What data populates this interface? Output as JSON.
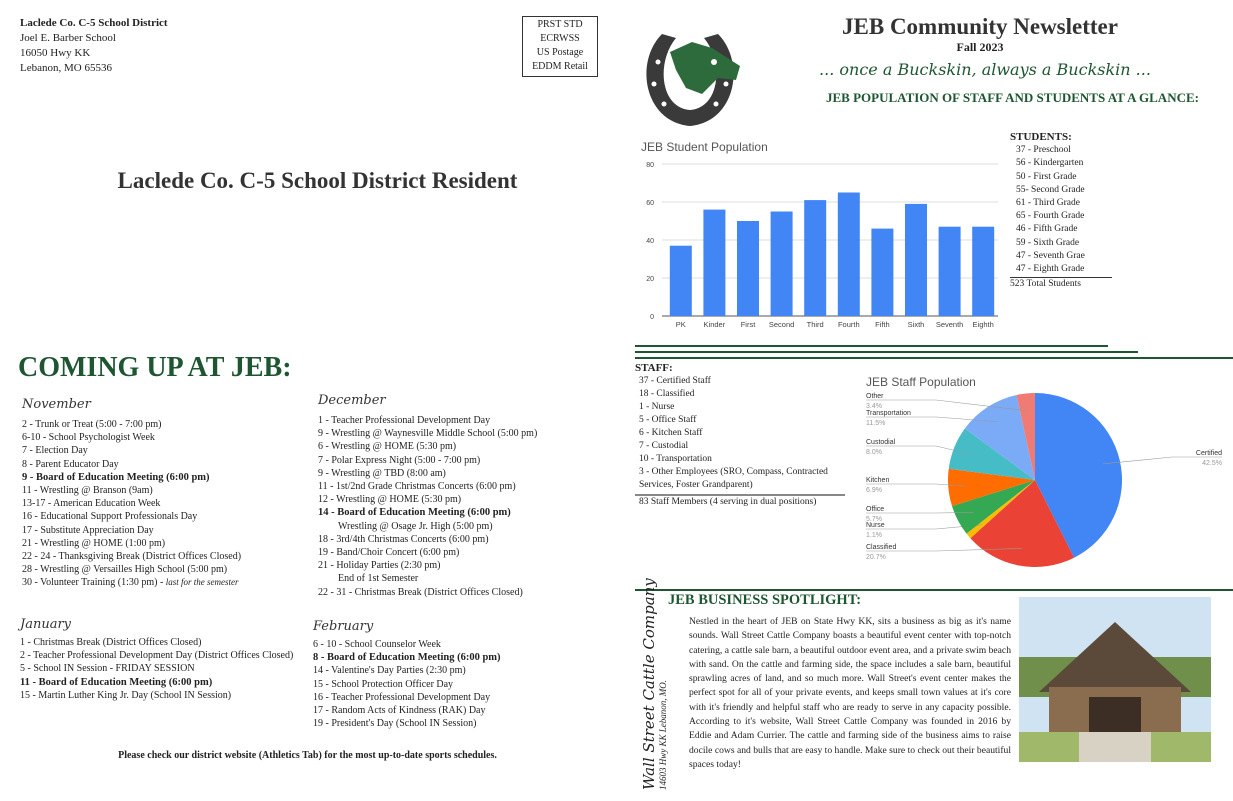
{
  "mailer": {
    "org": "Laclede Co. C-5 School District",
    "school": "Joel E. Barber School",
    "street": "16050 Hwy KK",
    "city": "Lebanon, MO 65536",
    "postage": [
      "PRST  STD",
      "ECRWSS",
      "US Postage",
      "EDDM Retail"
    ],
    "resident": "Laclede Co. C-5 School District Resident"
  },
  "coming": {
    "heading": "COMING UP AT JEB:",
    "months": [
      {
        "name": "November",
        "items": [
          {
            "text": "2 - Trunk or Treat (5:00 - 7:00 pm)"
          },
          {
            "text": "6-10 - School Psychologist Week"
          },
          {
            "text": "7 - Election Day"
          },
          {
            "text": "8 - Parent Educator Day"
          },
          {
            "text": "9 - Board of Education Meeting (6:00 pm)",
            "bold": true
          },
          {
            "text": "11 - Wrestling @ Branson (9am)"
          },
          {
            "text": "13-17 - American Education Week"
          },
          {
            "text": "16 - Educational Support Professionals Day"
          },
          {
            "text": "17 - Substitute Appreciation Day"
          },
          {
            "text": "21 - Wrestling @ HOME (1:00 pm)"
          },
          {
            "text": "22 - 24 - Thanksgiving Break (District Offices Closed)"
          },
          {
            "text": "28 - Wrestling @ Versailles High School (5:00 pm)"
          },
          {
            "text": "30 - Volunteer Training (1:30 pm) - ",
            "note": "last for the semester"
          }
        ]
      },
      {
        "name": "December",
        "items": [
          {
            "text": "1 - Teacher Professional Development Day"
          },
          {
            "text": "9 - Wrestling @ Waynesville Middle School (5:00 pm)"
          },
          {
            "text": "6 - Wrestling @ HOME (5:30 pm)"
          },
          {
            "text": "7 - Polar Express Night (5:00 - 7:00 pm)"
          },
          {
            "text": "9 - Wrestling @ TBD (8:00 am)"
          },
          {
            "text": "11 - 1st/2nd Grade Christmas Concerts (6:00 pm)"
          },
          {
            "text": "12 - Wrestling @ HOME (5:30 pm)"
          },
          {
            "text": "14 - Board of Education Meeting (6:00 pm)",
            "bold": true
          },
          {
            "text": "Wrestling @ Osage Jr. High (5:00 pm)",
            "indent": true
          },
          {
            "text": "18 - 3rd/4th Christmas Concerts (6:00 pm)"
          },
          {
            "text": "19 - Band/Choir Concert (6:00 pm)"
          },
          {
            "text": "21 - Holiday Parties (2:30 pm)"
          },
          {
            "text": "End of 1st Semester",
            "indent": true
          },
          {
            "text": "22 - 31 - Christmas Break (District Offices Closed)"
          }
        ]
      },
      {
        "name": "January",
        "items": [
          {
            "text": "1 - Christmas Break (District Offices Closed)"
          },
          {
            "text": "2 - Teacher Professional Development Day (District Offices Closed)"
          },
          {
            "text": "5 - School IN Session - FRIDAY SESSION"
          },
          {
            "text": "11 - Board of Education Meeting (6:00 pm)",
            "bold": true
          },
          {
            "text": "15 - Martin Luther King Jr. Day (School IN Session)"
          }
        ]
      },
      {
        "name": "February",
        "items": [
          {
            "text": "6 - 10 - School Counselor Week"
          },
          {
            "text": "8 - Board of Education Meeting (6:00 pm)",
            "bold": true
          },
          {
            "text": "14 - Valentine's Day Parties (2:30 pm)"
          },
          {
            "text": "15 - School Protection Officer Day"
          },
          {
            "text": "16 - Teacher Professional Development Day"
          },
          {
            "text": "17 - Random Acts of Kindness (RAK) Day"
          },
          {
            "text": "19 - President's Day (School IN Session)"
          }
        ]
      }
    ],
    "footnote": "Please check our district website (Athletics Tab) for the most up-to-date sports schedules."
  },
  "newsletter": {
    "title": "JEB Community Newsletter",
    "season": "Fall 2023",
    "motto": "... once a Buckskin, always a Buckskin ...",
    "glance": "JEB POPULATION OF STAFF AND STUDENTS AT A GLANCE:"
  },
  "students": {
    "heading": "STUDENTS:",
    "items": [
      "37 - Preschool",
      "56 - Kindergarten",
      "50 - First Grade",
      "55- Second Grade",
      "61 - Third Grade",
      "65 - Fourth Grade",
      "46 - Fifth Grade",
      "59 - Sixth Grade",
      "47 - Seventh Grae",
      "47 - Eighth Grade"
    ],
    "total": "523 Total Students"
  },
  "staff": {
    "heading": "STAFF:",
    "items": [
      "37 - Certified Staff",
      "18 - Classified",
      "1 - Nurse",
      "5 - Office Staff",
      "6 - Kitchen Staff",
      "7 - Custodial",
      "10 - Transportation",
      "3 - Other Employees (SRO, Compass, Contracted Services, Foster Grandparent)"
    ],
    "total": "83 Staff Members (4 serving in dual positions)"
  },
  "chart_data": [
    {
      "type": "bar",
      "title": "JEB Student Population",
      "categories": [
        "PK",
        "Kinder",
        "First",
        "Second",
        "Third",
        "Fourth",
        "Fifth",
        "Sixth",
        "Seventh",
        "Eighth"
      ],
      "values": [
        37,
        56,
        50,
        55,
        61,
        65,
        46,
        59,
        47,
        47
      ],
      "ylim": [
        0,
        80
      ],
      "yticks": [
        0,
        20,
        40,
        60,
        80
      ],
      "grid": true,
      "color": "#4285f4"
    },
    {
      "type": "pie",
      "title": "JEB Staff Population",
      "slices": [
        {
          "label": "Certified",
          "pct": "42.5%",
          "value": 42.5,
          "color": "#4285f4"
        },
        {
          "label": "Classified",
          "pct": "20.7%",
          "value": 20.7,
          "color": "#ea4335"
        },
        {
          "label": "Nurse",
          "pct": "1.1%",
          "value": 1.1,
          "color": "#fbbc04"
        },
        {
          "label": "Office",
          "pct": "5.7%",
          "value": 5.7,
          "color": "#34a853"
        },
        {
          "label": "Kitchen",
          "pct": "6.9%",
          "value": 6.9,
          "color": "#ff6d01"
        },
        {
          "label": "Custodial",
          "pct": "8.0%",
          "value": 8.0,
          "color": "#46bdc6"
        },
        {
          "label": "Transportation",
          "pct": "11.5%",
          "value": 11.5,
          "color": "#7baaf7"
        },
        {
          "label": "Other",
          "pct": "3.4%",
          "value": 3.4,
          "color": "#f07b72"
        }
      ]
    }
  ],
  "spotlight": {
    "heading": "JEB BUSINESS SPOTLIGHT:",
    "business": "Wall Street Cattle Company",
    "address": "14603 Hwy KK Lebanon, MO.",
    "body": "Nestled in the heart of JEB on State Hwy KK, sits a business as big as it's name sounds. Wall Street Cattle Company boasts a beautiful event center with top-notch catering, a  cattle sale barn, a beautiful outdoor event area, and a private swim beach with sand. On the cattle and farming side, the space includes a sale barn, beautiful sprawling acres of land, and so much more. Wall Street's event center makes the perfect spot for all of your private events, and keeps small town values at it's core with it's friendly and helpful staff who are ready to serve in any capacity possible. According to it's website, Wall Street Cattle Company was founded in 2016 by Eddie and Adam Currier. The cattle and farming side of the business aims to raise docile cows and bulls that are easy to handle. Make sure to check out their beautiful spaces today!"
  },
  "colors": {
    "accent": "#1e5631",
    "bar": "#4285f4"
  }
}
